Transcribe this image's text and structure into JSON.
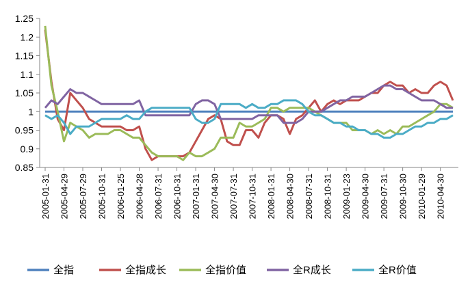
{
  "chart_data": {
    "type": "line",
    "title": "",
    "xlabel": "",
    "ylabel": "",
    "ylim": [
      0.85,
      1.25
    ],
    "yticks": [
      0.85,
      0.9,
      0.95,
      1,
      1.05,
      1.1,
      1.15,
      1.2,
      1.25
    ],
    "ytick_labels": [
      "0.85",
      "0.9",
      "0.95",
      "1",
      "1.05",
      "1.1",
      "1.15",
      "1.2",
      "1.25"
    ],
    "grid": false,
    "legend": "bottom",
    "x": [
      "2005-01-31",
      "2005-02-28",
      "2005-03-31",
      "2005-04-29",
      "2005-05-31",
      "2005-06-30",
      "2005-07-29",
      "2005-08-31",
      "2005-09-30",
      "2005-10-31",
      "2005-11-30",
      "2005-12-30",
      "2006-01-25",
      "2006-02-28",
      "2006-03-31",
      "2006-04-28",
      "2006-05-31",
      "2006-06-30",
      "2006-07-31",
      "2006-08-31",
      "2006-09-29",
      "2006-10-31",
      "2006-11-30",
      "2006-12-29",
      "2007-01-31",
      "2007-02-28",
      "2007-03-30",
      "2007-04-30",
      "2007-05-31",
      "2007-06-29",
      "2007-07-31",
      "2007-08-31",
      "2007-09-28",
      "2007-10-31",
      "2007-11-30",
      "2007-12-28",
      "2008-01-31",
      "2008-02-29",
      "2008-03-31",
      "2008-04-30",
      "2008-05-30",
      "2008-06-30",
      "2008-07-31",
      "2008-08-29",
      "2008-09-26",
      "2008-10-31",
      "2008-11-28",
      "2008-12-31",
      "2009-01-23",
      "2009-02-27",
      "2009-03-31",
      "2009-04-30",
      "2009-05-27",
      "2009-06-30",
      "2009-07-31",
      "2009-08-31",
      "2009-09-30",
      "2009-10-30",
      "2009-11-30",
      "2009-12-31",
      "2010-01-29",
      "2010-02-26",
      "2010-03-31",
      "2010-04-30",
      "2010-05-31",
      "2010-06-30"
    ],
    "x_tick_labels": [
      "2005-01-31",
      "2005-04-29",
      "2005-07-29",
      "2005-10-31",
      "2006-01-25",
      "2006-04-28",
      "2006-07-31",
      "2006-10-31",
      "2007-01-31",
      "2007-04-30",
      "2007-07-31",
      "2007-10-31",
      "2008-01-31",
      "2008-04-30",
      "2008-07-31",
      "2008-10-31",
      "2009-01-23",
      "2009-04-30",
      "2009-07-31",
      "2009-10-30",
      "2010-01-29",
      "2010-04-30"
    ],
    "series": [
      {
        "name": "全指",
        "color": "#4F81BD",
        "values": [
          1,
          1,
          1,
          1,
          1,
          1,
          1,
          1,
          1,
          1,
          1,
          1,
          1,
          1,
          1,
          1,
          1,
          1,
          1,
          1,
          1,
          1,
          1,
          1,
          1,
          1,
          1,
          1,
          1,
          1,
          1,
          1,
          1,
          1,
          1,
          1,
          1,
          1,
          1,
          1,
          1,
          1,
          1,
          1,
          1,
          1,
          1,
          1,
          1,
          1,
          1,
          1,
          1,
          1,
          1,
          1,
          1,
          1,
          1,
          1,
          1,
          1,
          1,
          1,
          1,
          1
        ]
      },
      {
        "name": "全指成长",
        "color": "#C0504D",
        "values": [
          1.22,
          1.08,
          0.98,
          0.95,
          1.05,
          1.03,
          1.01,
          0.98,
          0.97,
          0.96,
          0.96,
          0.96,
          0.96,
          0.95,
          0.95,
          0.96,
          0.9,
          0.87,
          0.88,
          0.88,
          0.88,
          0.88,
          0.88,
          0.89,
          0.92,
          0.95,
          0.98,
          0.99,
          0.98,
          0.92,
          0.91,
          0.91,
          0.95,
          0.95,
          0.93,
          0.97,
          0.99,
          0.99,
          0.98,
          0.94,
          0.98,
          0.99,
          1.01,
          1.03,
          1.0,
          1.02,
          1.03,
          1.02,
          1.03,
          1.03,
          1.03,
          1.04,
          1.05,
          1.05,
          1.07,
          1.08,
          1.07,
          1.07,
          1.05,
          1.06,
          1.05,
          1.05,
          1.07,
          1.08,
          1.07,
          1.03
        ]
      },
      {
        "name": "全指价值",
        "color": "#9BBB59",
        "values": [
          1.23,
          1.07,
          1.0,
          0.92,
          0.97,
          0.96,
          0.95,
          0.93,
          0.94,
          0.94,
          0.94,
          0.95,
          0.95,
          0.94,
          0.93,
          0.93,
          0.91,
          0.89,
          0.88,
          0.88,
          0.88,
          0.88,
          0.87,
          0.89,
          0.88,
          0.88,
          0.89,
          0.9,
          0.93,
          0.93,
          0.93,
          0.97,
          0.96,
          0.96,
          0.97,
          0.98,
          1.01,
          1.01,
          1.0,
          1.01,
          1.01,
          1.01,
          1.01,
          1.0,
          0.99,
          0.98,
          0.97,
          0.97,
          0.97,
          0.95,
          0.95,
          0.95,
          0.94,
          0.95,
          0.94,
          0.95,
          0.94,
          0.96,
          0.96,
          0.97,
          0.98,
          0.99,
          1.0,
          1.02,
          1.02,
          1.01
        ]
      },
      {
        "name": "全R成长",
        "color": "#8064A2",
        "values": [
          1.01,
          1.03,
          1.02,
          1.04,
          1.06,
          1.05,
          1.05,
          1.04,
          1.03,
          1.02,
          1.02,
          1.02,
          1.02,
          1.02,
          1.02,
          1.03,
          0.99,
          0.99,
          0.99,
          0.99,
          0.99,
          0.99,
          0.99,
          0.99,
          1.02,
          1.03,
          1.03,
          1.02,
          0.98,
          0.98,
          0.98,
          0.98,
          0.98,
          0.98,
          0.99,
          0.99,
          0.99,
          0.99,
          0.97,
          0.97,
          0.97,
          0.98,
          1.0,
          1.0,
          1.0,
          1.01,
          1.02,
          1.03,
          1.03,
          1.04,
          1.04,
          1.04,
          1.05,
          1.06,
          1.07,
          1.07,
          1.06,
          1.06,
          1.05,
          1.04,
          1.03,
          1.03,
          1.03,
          1.02,
          1.01,
          1.01
        ]
      },
      {
        "name": "全R价值",
        "color": "#4BACC6",
        "values": [
          0.99,
          0.98,
          0.99,
          0.97,
          0.94,
          0.96,
          0.96,
          0.96,
          0.97,
          0.98,
          0.98,
          0.98,
          0.98,
          0.99,
          0.98,
          0.98,
          1.0,
          1.01,
          1.01,
          1.01,
          1.01,
          1.01,
          1.01,
          1.01,
          0.98,
          0.97,
          0.97,
          0.98,
          1.02,
          1.02,
          1.02,
          1.02,
          1.01,
          1.02,
          1.01,
          1.01,
          1.02,
          1.02,
          1.03,
          1.03,
          1.03,
          1.02,
          1.0,
          0.99,
          0.99,
          0.98,
          0.97,
          0.97,
          0.96,
          0.96,
          0.95,
          0.95,
          0.94,
          0.94,
          0.93,
          0.93,
          0.94,
          0.94,
          0.95,
          0.96,
          0.96,
          0.97,
          0.97,
          0.98,
          0.98,
          0.99
        ]
      }
    ]
  }
}
